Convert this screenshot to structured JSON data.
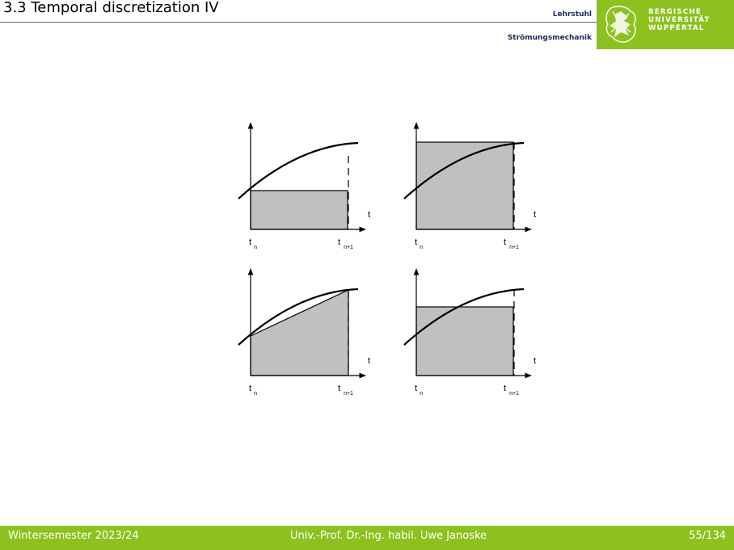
{
  "header": {
    "title": "3.3 Temporal discretization IV",
    "chair_line1": "Lehrstuhl",
    "chair_line2": "Strömungsmechanik",
    "university_lines": [
      "BERGISCHE",
      "UNIVERSITÄT",
      "WUPPERTAL"
    ],
    "logo_icon": "university-lion-emblem-icon",
    "brand_color": "#8dc11f"
  },
  "diagrams": [
    {
      "name": "lower-sum-rectangle",
      "axis_label": "t",
      "tick_start": "t",
      "sub_start": "n",
      "tick_end": "t",
      "sub_end": "n+1"
    },
    {
      "name": "upper-sum-rectangle",
      "axis_label": "t",
      "tick_start": "t",
      "sub_start": "n",
      "tick_end": "t",
      "sub_end": "n+1"
    },
    {
      "name": "trapezoid",
      "axis_label": "t",
      "tick_start": "t",
      "sub_start": "n",
      "tick_end": "t",
      "sub_end": "n+1"
    },
    {
      "name": "midpoint-rectangle",
      "axis_label": "t",
      "tick_start": "t",
      "sub_start": "n",
      "tick_end": "t",
      "sub_end": "n+1"
    }
  ],
  "footer": {
    "left": "Wintersemester 2023/24",
    "middle": "Univ.-Prof. Dr.-Ing. habil. Uwe Janoske",
    "right": "55/134"
  }
}
